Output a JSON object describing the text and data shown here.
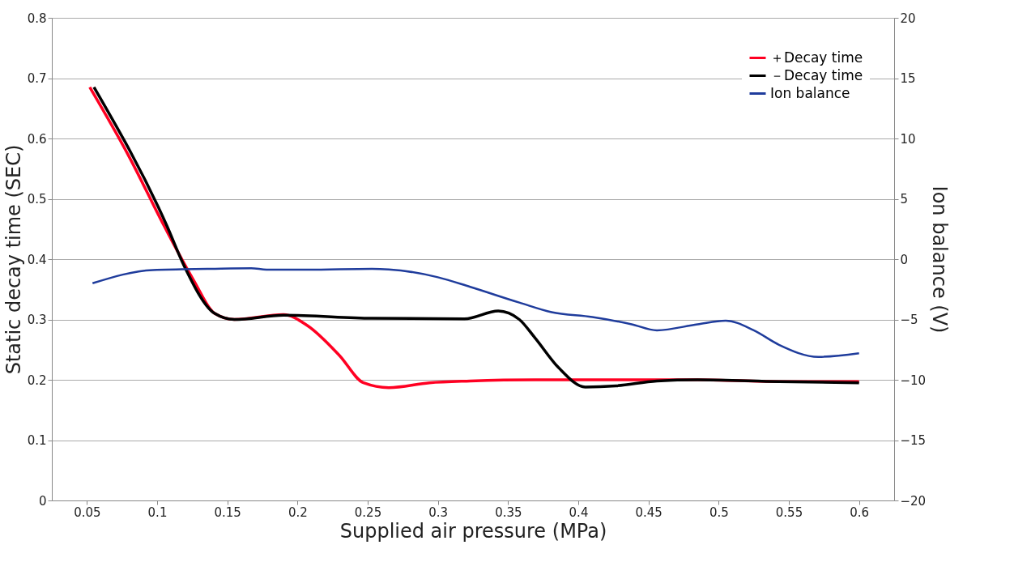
{
  "chart_data": {
    "type": "line",
    "xlabel": "Supplied air pressure (MPa)",
    "ylabel": "Static decay time  (SEC)",
    "y2label": "Ion balance  (V)",
    "xlim": [
      0.025,
      0.625
    ],
    "xticks": [
      0.05,
      0.1,
      0.15,
      0.2,
      0.25,
      0.3,
      0.35,
      0.4,
      0.45,
      0.5,
      0.55,
      0.6
    ],
    "ylim": [
      0,
      0.8
    ],
    "yticks": [
      0,
      0.1,
      0.2,
      0.3,
      0.4,
      0.5,
      0.6,
      0.7,
      0.8
    ],
    "y2lim": [
      -20,
      20
    ],
    "y2ticks": [
      -20,
      -15,
      -10,
      -5,
      0,
      5,
      10,
      15,
      20
    ],
    "grid": "y",
    "legend": "top right",
    "marker": "none",
    "line_style": "solid",
    "series": [
      {
        "name": "＋Decay time",
        "color": "#ff0022",
        "x": [
          0.052,
          0.08,
          0.105,
          0.126,
          0.141,
          0.155,
          0.19,
          0.207,
          0.23,
          0.247,
          0.265,
          0.294,
          0.323,
          0.369,
          0.427,
          0.485,
          0.543,
          0.6
        ],
        "values": [
          0.685,
          0.57,
          0.455,
          0.365,
          0.31,
          0.3,
          0.308,
          0.29,
          0.24,
          0.195,
          0.187,
          0.195,
          0.198,
          0.2,
          0.2,
          0.2,
          0.197,
          0.197
        ]
      },
      {
        "name": "－Decay time",
        "color": "#000000",
        "x": [
          0.055,
          0.107,
          0.119,
          0.141,
          0.155,
          0.19,
          0.253,
          0.319,
          0.343,
          0.358,
          0.369,
          0.386,
          0.405,
          0.427,
          0.456,
          0.485,
          0.543,
          0.6
        ],
        "values": [
          0.685,
          0.455,
          0.39,
          0.31,
          0.3,
          0.307,
          0.302,
          0.301,
          0.314,
          0.3,
          0.27,
          0.22,
          0.188,
          0.19,
          0.198,
          0.2,
          0.197,
          0.195
        ]
      },
      {
        "name": "Ion balance",
        "color": "#1f3c9c",
        "axis": "y2",
        "x": [
          0.054,
          0.097,
          0.138,
          0.167,
          0.178,
          0.207,
          0.253,
          0.265,
          0.3,
          0.323,
          0.358,
          0.381,
          0.41,
          0.438,
          0.456,
          0.485,
          0.505,
          0.525,
          0.543,
          0.571,
          0.6
        ],
        "values": [
          -2.0,
          -0.9,
          -0.8,
          -0.75,
          -0.87,
          -0.87,
          -0.8,
          -0.85,
          -1.5,
          -2.3,
          -3.6,
          -4.4,
          -4.8,
          -5.4,
          -5.9,
          -5.4,
          -5.1,
          -5.9,
          -7.1,
          -8.1,
          -7.8
        ]
      }
    ]
  }
}
